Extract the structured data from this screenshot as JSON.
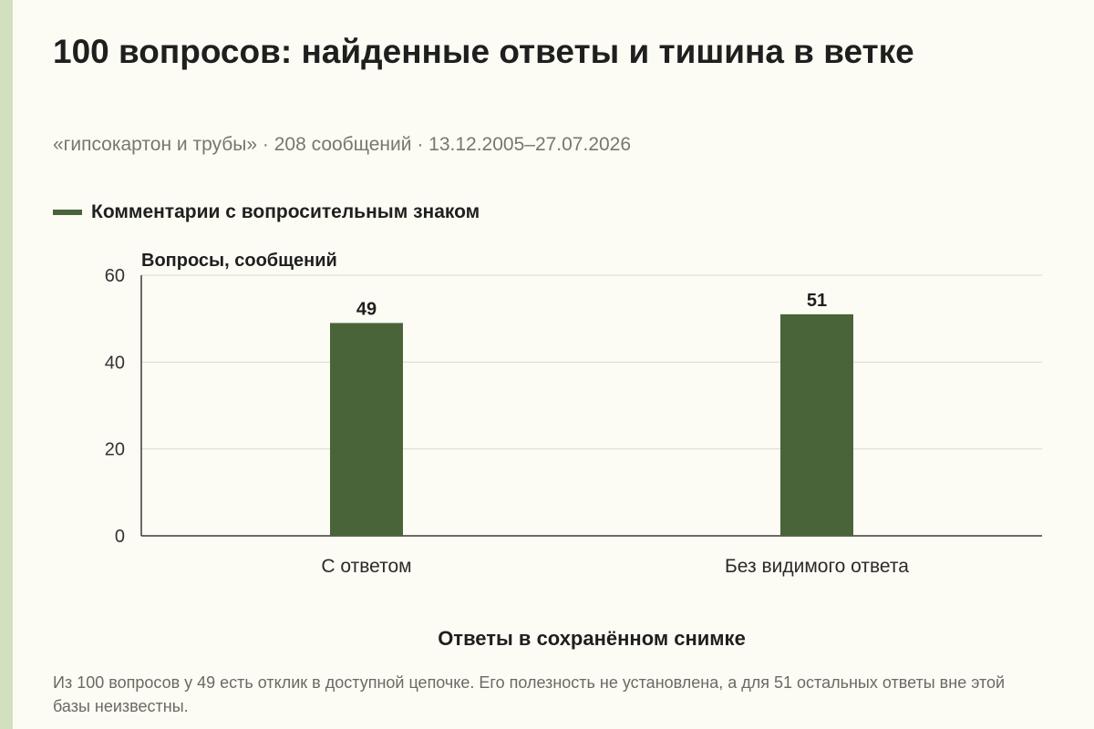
{
  "title": "100 вопросов: найденные ответы и тишина в ветке",
  "subtitle": "«гипсокартон и трубы» · 208 сообщений · 13.12.2005–27.07.2026",
  "legend": {
    "label": "Комментарии с вопросительным знаком",
    "color": "#4a6439"
  },
  "footnote": "Из 100 вопросов у 49 есть отклик в доступной цепочке. Его полезность не установлена, а для 51 остальных ответы вне этой базы неизвестны.",
  "chart_data": {
    "type": "bar",
    "categories": [
      "С ответом",
      "Без видимого ответа"
    ],
    "series": [
      {
        "name": "Комментарии с вопросительным знаком",
        "values": [
          49,
          51
        ],
        "color": "#4a6439"
      }
    ],
    "data_labels": [
      "49",
      "51"
    ],
    "ylabel": "Вопросы, сообщений",
    "xlabel": "Ответы в сохранённом снимке",
    "ylim": [
      0,
      60
    ],
    "yticks": [
      0,
      20,
      40,
      60
    ],
    "grid": true,
    "legend_position": "top-left"
  }
}
